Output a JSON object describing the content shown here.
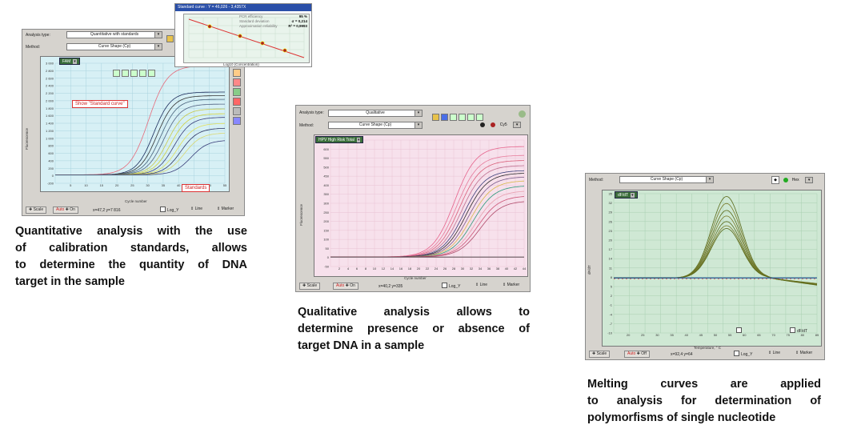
{
  "panel1": {
    "analysis_type_label": "Analysis type:",
    "analysis_type_value": "Quantitative with standards",
    "method_label": "Method:",
    "method_value": "Curve Shape (Cp)",
    "channel": "FAM",
    "y_axis_title": "Fluorescence",
    "x_axis_title": "Cycle number",
    "y_ticks": [
      "3 000",
      "2 800",
      "2 600",
      "2 400",
      "2 200",
      "2 000",
      "1 800",
      "1 600",
      "1 400",
      "1 200",
      "1 000",
      "800",
      "600",
      "400",
      "200",
      "0",
      "-200"
    ],
    "x_ticks": [
      "5",
      "10",
      "15",
      "20",
      "25",
      "30",
      "35",
      "40",
      "45",
      "50",
      "55"
    ],
    "callout_standard_curve": "Show \"Standard curve\"",
    "callout_standards": "Standards",
    "scale_btn": "Scale",
    "auto_btn": "Auto",
    "on_btn": "On",
    "coords": "x=47,2 y=7 816",
    "log_label": "Log_Y",
    "line_label": "Line",
    "marker_label": "Marker",
    "inset": {
      "title": "Standard curve : Y = 46,026 - 3,4357X",
      "stats": [
        {
          "label": "PCR efficiency",
          "value": "95 %"
        },
        {
          "label": "Standard deviation",
          "value": "σ = 0,214"
        },
        {
          "label": "Approximation reliability",
          "value": "R² = 0,9993"
        }
      ],
      "x_axis_title": "Log10 (Concentration)"
    }
  },
  "panel2": {
    "analysis_type_label": "Analysis type:",
    "analysis_type_value": "Qualitative",
    "method_label": "Method:",
    "method_value": "Curve Shape (Cp)",
    "channel": "HPV High Risk Total",
    "cy_label": "Cy5",
    "y_axis_title": "Fluorescence",
    "x_axis_title": "Cycle number",
    "y_ticks": [
      "650",
      "600",
      "550",
      "500",
      "450",
      "400",
      "350",
      "300",
      "250",
      "200",
      "150",
      "100",
      "50",
      "0",
      "-50"
    ],
    "x_ticks": [
      "2",
      "4",
      "6",
      "8",
      "10",
      "12",
      "14",
      "16",
      "18",
      "20",
      "22",
      "24",
      "26",
      "28",
      "30",
      "32",
      "34",
      "36",
      "38",
      "40",
      "42",
      "44"
    ],
    "scale_btn": "Scale",
    "auto_btn": "Auto",
    "on_btn": "On",
    "coords": "x=40,2 y=335",
    "log_label": "Log_Y",
    "line_label": "Line",
    "marker_label": "Marker"
  },
  "panel3": {
    "method_label": "Method:",
    "method_value": "Curve Shape (Cp)",
    "channel": "dF/dT",
    "hex_label": "Hex",
    "y_axis_title": "dF/dT",
    "x_axis_title": "Temperature, ° C",
    "y_ticks": [
      "35",
      "32",
      "29",
      "26",
      "23",
      "20",
      "17",
      "14",
      "11",
      "8",
      "5",
      "2",
      "-1",
      "-4",
      "-7",
      "-10"
    ],
    "x_ticks": [
      "20",
      "25",
      "30",
      "35",
      "40",
      "45",
      "50",
      "55",
      "60",
      "65",
      "70",
      "75",
      "80",
      "85"
    ],
    "dfdt_label": "dF/dT",
    "scale_btn": "Scale",
    "auto_btn": "Auto",
    "off_btn": "Off",
    "coords": "x=92,4 y=64",
    "log_label": "Log_Y",
    "line_label": "Line",
    "marker_label": "Marker"
  },
  "captions": {
    "quantitative": [
      "Quantitative analysis with the use",
      "of calibration standards, allows",
      "to determine the quantity of DNA",
      "target in the sample"
    ],
    "qualitative": [
      "Qualitative analysis allows to",
      "determine presence or absence of",
      "target DNA in a sample"
    ],
    "melting": [
      "Melting curves are applied",
      "to analysis for determination of",
      "polymorfisms of single nucleotide"
    ]
  }
}
